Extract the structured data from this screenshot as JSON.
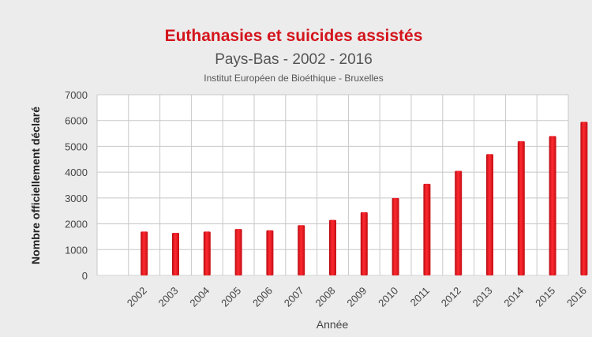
{
  "chart_data": {
    "type": "bar",
    "title": "Euthanasies et suicides assistés",
    "subtitle": "Pays-Bas - 2002 - 2016",
    "source": "Institut Européen de Bioéthique - Bruxelles",
    "xlabel": "Année",
    "ylabel": "Nombre officiellement déclaré",
    "ylim": [
      0,
      7000
    ],
    "yticks": [
      "0",
      "1000",
      "2000",
      "3000",
      "4000",
      "5000",
      "6000",
      "7000"
    ],
    "categories": [
      "2002",
      "2003",
      "2004",
      "2005",
      "2006",
      "2007",
      "2008",
      "2009",
      "2010",
      "2011",
      "2012",
      "2013",
      "2014",
      "2015",
      "2016"
    ],
    "values": [
      1700,
      1650,
      1700,
      1800,
      1750,
      1950,
      2150,
      2450,
      3000,
      3550,
      4050,
      4700,
      5200,
      5400,
      5950
    ],
    "grid": true,
    "colors": {
      "bar": "#e8141c",
      "title": "#d4141c",
      "text": "#444444",
      "grid": "#c8c8c8"
    }
  }
}
